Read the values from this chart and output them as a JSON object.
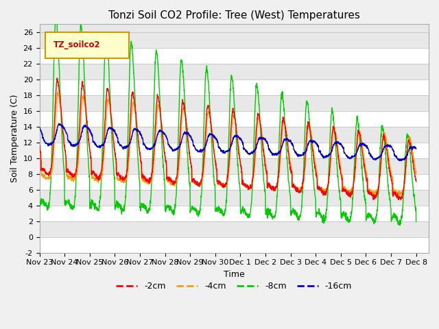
{
  "title": "Tonzi Soil CO2 Profile: Tree (West) Temperatures",
  "xlabel": "Time",
  "ylabel": "Soil Temperature (C)",
  "ylim": [
    -2,
    27
  ],
  "xlim": [
    0,
    15.5
  ],
  "xtick_labels": [
    "Nov 23",
    "Nov 24",
    "Nov 25",
    "Nov 26",
    "Nov 27",
    "Nov 28",
    "Nov 29",
    "Nov 30",
    "Dec 1",
    "Dec 2",
    "Dec 3",
    "Dec 4",
    "Dec 5",
    "Dec 6",
    "Dec 7",
    "Dec 8"
  ],
  "ytick_values": [
    -2,
    0,
    2,
    4,
    6,
    8,
    10,
    12,
    14,
    16,
    18,
    20,
    22,
    24,
    26
  ],
  "line_colors": [
    "#ff0000",
    "#ff9900",
    "#00cc00",
    "#0000cc"
  ],
  "line_labels": [
    "-2cm",
    "-4cm",
    "-8cm",
    "-16cm"
  ],
  "legend_title": "TZ_soilco2",
  "legend_title_color": "#cc0000",
  "legend_box_color": "#ffffcc",
  "legend_box_edge": "#cc9900",
  "bg_color": "#e8e8e8",
  "grid_color": "#ffffff",
  "title_fontsize": 11,
  "axis_fontsize": 9,
  "tick_fontsize": 8
}
